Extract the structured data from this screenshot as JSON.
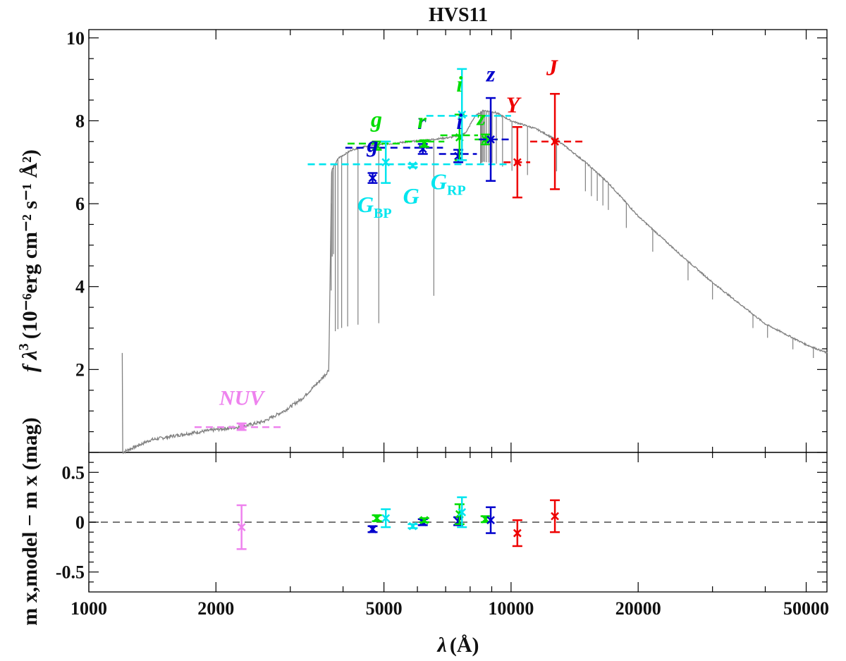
{
  "chart_data": {
    "type": "scatter",
    "title": "HVS11",
    "xlabel_main": "λ",
    "xlabel_unit": "(Å)",
    "x_scale": "log",
    "xlim": [
      1000,
      56000
    ],
    "xticks": [
      1000,
      2000,
      5000,
      10000,
      20000,
      50000
    ],
    "xtick_labels": [
      "1000",
      "2000",
      "5000",
      "10000",
      "20000",
      "50000"
    ],
    "top_panel": {
      "ylabel_prefix": "f λ",
      "ylabel_units": "(10⁻⁶erg cm⁻² s⁻¹ Å²)",
      "ylim": [
        0,
        10.2
      ],
      "yticks": [
        2,
        4,
        6,
        8,
        10
      ],
      "ytick_labels": [
        "2",
        "4",
        "6",
        "8",
        "10"
      ]
    },
    "bottom_panel": {
      "ylabel": "m x,model − m x (mag)",
      "ylim": [
        -0.7,
        0.7
      ],
      "yticks": [
        0.5,
        0,
        -0.5
      ],
      "ytick_labels": [
        "0.5",
        "0",
        "-0.5"
      ]
    },
    "model_sed": {
      "name": "model spectrum",
      "color": "#808080",
      "continuum": [
        [
          1200,
          0.0
        ],
        [
          1400,
          0.3
        ],
        [
          1700,
          0.45
        ],
        [
          2000,
          0.55
        ],
        [
          2300,
          0.62
        ],
        [
          2600,
          0.75
        ],
        [
          2900,
          1.0
        ],
        [
          3200,
          1.3
        ],
        [
          3500,
          1.7
        ],
        [
          3650,
          1.9
        ],
        [
          3700,
          2.0
        ],
        [
          3760,
          6.8
        ],
        [
          3900,
          7.1
        ],
        [
          4200,
          7.3
        ],
        [
          4600,
          7.4
        ],
        [
          5200,
          7.45
        ],
        [
          5800,
          7.5
        ],
        [
          6500,
          7.55
        ],
        [
          7200,
          7.6
        ],
        [
          7800,
          7.7
        ],
        [
          8200,
          8.1
        ],
        [
          8600,
          8.25
        ],
        [
          9200,
          8.2
        ],
        [
          10000,
          8.0
        ],
        [
          11500,
          7.8
        ],
        [
          13000,
          7.5
        ],
        [
          15000,
          7.0
        ],
        [
          17000,
          6.5
        ],
        [
          20000,
          5.7
        ],
        [
          25000,
          4.8
        ],
        [
          30000,
          4.1
        ],
        [
          40000,
          3.1
        ],
        [
          50000,
          2.6
        ],
        [
          56000,
          2.4
        ]
      ],
      "absorption_lines": [
        3750,
        3771,
        3798,
        3835,
        3889,
        3970,
        4102,
        4340,
        4861,
        6563,
        8467,
        8502,
        8545,
        8598,
        8665,
        8750,
        8863,
        9015,
        9229,
        9546,
        10049,
        10938,
        12818,
        15000,
        15500,
        16000,
        16500,
        17000,
        18750,
        21655,
        26252,
        30000,
        37400,
        40500,
        46500,
        52000
      ]
    },
    "photometry": [
      {
        "label": "NUV",
        "color": "#ee82ee",
        "wl": 2300,
        "xerr": [
          1780,
          2900
        ],
        "flux": 0.62,
        "ferr": 0.08,
        "model": 0.61,
        "resid": -0.05,
        "rerr": 0.22
      },
      {
        "label": "g",
        "color": "#0000cc",
        "wl": 4700,
        "xerr": [
          4050,
          5450
        ],
        "flux": 6.62,
        "ferr": 0.12,
        "model": 7.35,
        "resid": -0.07,
        "rerr": 0.03
      },
      {
        "label": "g",
        "color": "#00dd00",
        "wl": 4810,
        "xerr": [
          4100,
          5500
        ],
        "flux": 7.4,
        "ferr": 0.1,
        "model": 7.45,
        "resid": 0.04,
        "rerr": 0.03
      },
      {
        "label": "G_BP",
        "color": "#00e5ee",
        "wl": 5050,
        "xerr": [
          3300,
          6700
        ],
        "flux": 7.0,
        "ferr": 0.5,
        "model": 6.95,
        "resid": 0.04,
        "rerr": 0.09
      },
      {
        "label": "G",
        "color": "#00e5ee",
        "wl": 5850,
        "xerr": [
          3300,
          10000
        ],
        "flux": 6.92,
        "ferr": 0.04,
        "model": 6.95,
        "resid": -0.04,
        "rerr": 0.02
      },
      {
        "label": "r",
        "color": "#0000cc",
        "wl": 6180,
        "xerr": [
          5550,
          6900
        ],
        "flux": 7.32,
        "ferr": 0.12,
        "model": 7.35,
        "resid": 0.0,
        "rerr": 0.03
      },
      {
        "label": "r",
        "color": "#00dd00",
        "wl": 6230,
        "xerr": [
          5600,
          6950
        ],
        "flux": 7.45,
        "ferr": 0.08,
        "model": 7.5,
        "resid": 0.02,
        "rerr": 0.02
      },
      {
        "label": "i",
        "color": "#0000cc",
        "wl": 7500,
        "xerr": [
          6750,
          8300
        ],
        "flux": 7.15,
        "ferr": 0.15,
        "model": 7.2,
        "resid": 0.01,
        "rerr": 0.04
      },
      {
        "label": "i",
        "color": "#00dd00",
        "wl": 7550,
        "xerr": [
          6800,
          8350
        ],
        "flux": 7.6,
        "ferr": 0.55,
        "model": 7.65,
        "resid": 0.08,
        "rerr": 0.1
      },
      {
        "label": "G_RP",
        "color": "#00e5ee",
        "wl": 7650,
        "xerr": [
          6300,
          10000
        ],
        "flux": 8.15,
        "ferr": 1.1,
        "model": 8.12,
        "resid": 0.1,
        "rerr": 0.15
      },
      {
        "label": "z",
        "color": "#00dd00",
        "wl": 8700,
        "xerr": [
          8200,
          9300
        ],
        "flux": 7.55,
        "ferr": 0.12,
        "model": 7.55,
        "resid": 0.03,
        "rerr": 0.03
      },
      {
        "label": "z",
        "color": "#0000cc",
        "wl": 8950,
        "xerr": [
          8400,
          10100
        ],
        "flux": 7.55,
        "ferr": 1.0,
        "model": 7.55,
        "resid": 0.02,
        "rerr": 0.13
      },
      {
        "label": "Y",
        "color": "#ee0000",
        "wl": 10350,
        "xerr": [
          9600,
          11100
        ],
        "flux": 7.0,
        "ferr": 0.85,
        "model": 7.0,
        "resid": -0.11,
        "rerr": 0.13
      },
      {
        "label": "J",
        "color": "#ee0000",
        "wl": 12700,
        "xerr": [
          11100,
          14800
        ],
        "flux": 7.5,
        "ferr": 1.15,
        "model": 7.5,
        "resid": 0.06,
        "rerr": 0.16
      }
    ],
    "band_labels": [
      {
        "text": "NUV",
        "sub": "",
        "color": "#ee82ee",
        "wl": 2300,
        "flux": 1.15,
        "upright": true
      },
      {
        "text": "g",
        "sub": "",
        "color": "#00dd00",
        "wl": 4800,
        "flux": 7.85,
        "upright": false
      },
      {
        "text": "g",
        "sub": "",
        "color": "#0000cc",
        "wl": 4700,
        "flux": 7.25,
        "upright": false
      },
      {
        "text": "G",
        "sub": "BP",
        "color": "#00e5ee",
        "wl": 4750,
        "flux": 5.8,
        "upright": false
      },
      {
        "text": "G",
        "sub": "",
        "color": "#00e5ee",
        "wl": 5800,
        "flux": 6.0,
        "upright": false
      },
      {
        "text": "r",
        "sub": "",
        "color": "#0000cc",
        "wl": 6150,
        "flux": 7.8,
        "upright": false
      },
      {
        "text": "r",
        "sub": "",
        "color": "#00dd00",
        "wl": 6150,
        "flux": 7.82,
        "upright": false
      },
      {
        "text": "i",
        "sub": "",
        "color": "#00dd00",
        "wl": 7550,
        "flux": 8.7,
        "upright": false
      },
      {
        "text": "i",
        "sub": "",
        "color": "#0000cc",
        "wl": 7550,
        "flux": 7.8,
        "upright": false
      },
      {
        "text": "G",
        "sub": "RP",
        "color": "#00e5ee",
        "wl": 7100,
        "flux": 6.35,
        "upright": false
      },
      {
        "text": "z",
        "sub": "",
        "color": "#00dd00",
        "wl": 8500,
        "flux": 7.9,
        "upright": false
      },
      {
        "text": "z",
        "sub": "",
        "color": "#0000cc",
        "wl": 8950,
        "flux": 8.95,
        "upright": false
      },
      {
        "text": "Y",
        "sub": "",
        "color": "#ee0000",
        "wl": 10100,
        "flux": 8.2,
        "upright": false
      },
      {
        "text": "J",
        "sub": "",
        "color": "#ee0000",
        "wl": 12500,
        "flux": 9.1,
        "upright": false
      }
    ]
  }
}
